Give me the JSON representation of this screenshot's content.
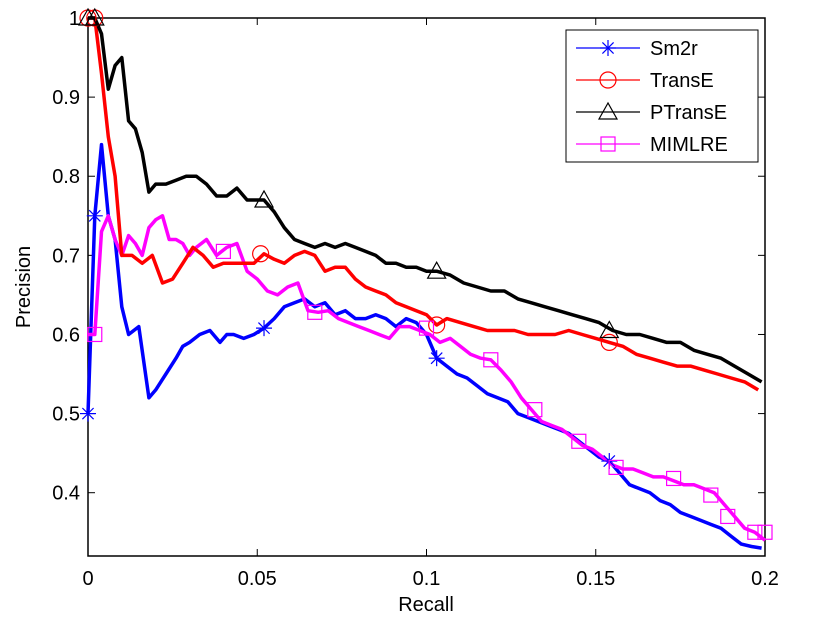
{
  "chart_data": {
    "type": "line",
    "title": "",
    "xlabel": "Recall",
    "ylabel": "Precision",
    "xlim": [
      0,
      0.2
    ],
    "ylim": [
      0.32,
      1.0
    ],
    "xticks": [
      0,
      0.05,
      0.1,
      0.15,
      0.2
    ],
    "xtick_labels": [
      "0",
      "0.05",
      "0.1",
      "0.15",
      "0.2"
    ],
    "yticks": [
      0.4,
      0.5,
      0.6,
      0.7,
      0.8,
      0.9,
      1.0
    ],
    "ytick_labels": [
      "0.4",
      "0.5",
      "0.6",
      "0.7",
      "0.8",
      "0.9",
      "1"
    ],
    "grid": false,
    "legend_position": "top-right",
    "series": [
      {
        "name": "Sm2r",
        "color": "#0000ff",
        "marker": "asterisk",
        "x": [
          0.0,
          0.002,
          0.004,
          0.006,
          0.008,
          0.01,
          0.012,
          0.015,
          0.018,
          0.02,
          0.023,
          0.026,
          0.028,
          0.03,
          0.033,
          0.036,
          0.039,
          0.041,
          0.043,
          0.046,
          0.049,
          0.052,
          0.055,
          0.058,
          0.061,
          0.064,
          0.067,
          0.07,
          0.073,
          0.076,
          0.079,
          0.082,
          0.085,
          0.088,
          0.091,
          0.094,
          0.097,
          0.1,
          0.103,
          0.106,
          0.109,
          0.112,
          0.115,
          0.118,
          0.121,
          0.124,
          0.127,
          0.13,
          0.133,
          0.136,
          0.139,
          0.142,
          0.145,
          0.148,
          0.151,
          0.154,
          0.157,
          0.16,
          0.163,
          0.166,
          0.169,
          0.172,
          0.175,
          0.178,
          0.181,
          0.184,
          0.187,
          0.19,
          0.193,
          0.196,
          0.199
        ],
        "y": [
          0.5,
          0.75,
          0.84,
          0.75,
          0.72,
          0.635,
          0.6,
          0.61,
          0.52,
          0.53,
          0.55,
          0.57,
          0.585,
          0.59,
          0.6,
          0.605,
          0.59,
          0.6,
          0.6,
          0.595,
          0.6,
          0.608,
          0.62,
          0.635,
          0.64,
          0.645,
          0.635,
          0.64,
          0.625,
          0.63,
          0.62,
          0.62,
          0.625,
          0.62,
          0.61,
          0.62,
          0.615,
          0.6,
          0.57,
          0.56,
          0.55,
          0.545,
          0.535,
          0.525,
          0.52,
          0.515,
          0.5,
          0.495,
          0.49,
          0.485,
          0.48,
          0.475,
          0.465,
          0.455,
          0.445,
          0.44,
          0.425,
          0.41,
          0.405,
          0.4,
          0.39,
          0.385,
          0.375,
          0.37,
          0.365,
          0.36,
          0.355,
          0.345,
          0.335,
          0.332,
          0.33
        ],
        "marker_x": [
          0.0,
          0.002,
          0.052,
          0.103,
          0.154
        ],
        "marker_y": [
          0.5,
          0.75,
          0.608,
          0.57,
          0.44
        ]
      },
      {
        "name": "TransE",
        "color": "#ff0000",
        "marker": "circle",
        "x": [
          0.0,
          0.002,
          0.004,
          0.006,
          0.008,
          0.01,
          0.013,
          0.016,
          0.019,
          0.022,
          0.025,
          0.028,
          0.031,
          0.034,
          0.037,
          0.04,
          0.043,
          0.046,
          0.049,
          0.052,
          0.055,
          0.058,
          0.061,
          0.064,
          0.067,
          0.07,
          0.073,
          0.076,
          0.079,
          0.082,
          0.085,
          0.088,
          0.091,
          0.094,
          0.097,
          0.1,
          0.103,
          0.106,
          0.11,
          0.114,
          0.118,
          0.122,
          0.126,
          0.13,
          0.134,
          0.138,
          0.142,
          0.146,
          0.15,
          0.154,
          0.158,
          0.162,
          0.166,
          0.17,
          0.174,
          0.178,
          0.182,
          0.186,
          0.19,
          0.194,
          0.198
        ],
        "y": [
          1.0,
          1.0,
          0.93,
          0.85,
          0.8,
          0.7,
          0.7,
          0.69,
          0.7,
          0.665,
          0.67,
          0.69,
          0.71,
          0.7,
          0.685,
          0.69,
          0.69,
          0.69,
          0.69,
          0.702,
          0.695,
          0.69,
          0.7,
          0.705,
          0.7,
          0.68,
          0.685,
          0.685,
          0.67,
          0.66,
          0.655,
          0.65,
          0.64,
          0.635,
          0.63,
          0.625,
          0.612,
          0.62,
          0.615,
          0.61,
          0.605,
          0.605,
          0.605,
          0.6,
          0.6,
          0.6,
          0.605,
          0.6,
          0.595,
          0.59,
          0.585,
          0.575,
          0.57,
          0.565,
          0.56,
          0.56,
          0.555,
          0.55,
          0.545,
          0.54,
          0.53
        ],
        "marker_x": [
          0.0,
          0.002,
          0.051,
          0.103,
          0.154
        ],
        "marker_y": [
          1.0,
          1.0,
          0.702,
          0.612,
          0.59
        ]
      },
      {
        "name": "PTransE",
        "color": "#000000",
        "marker": "triangle",
        "x": [
          0.0,
          0.002,
          0.004,
          0.006,
          0.008,
          0.01,
          0.012,
          0.014,
          0.016,
          0.018,
          0.02,
          0.023,
          0.026,
          0.029,
          0.032,
          0.035,
          0.038,
          0.041,
          0.044,
          0.047,
          0.05,
          0.052,
          0.055,
          0.058,
          0.061,
          0.064,
          0.067,
          0.07,
          0.073,
          0.076,
          0.079,
          0.082,
          0.085,
          0.088,
          0.091,
          0.094,
          0.097,
          0.1,
          0.103,
          0.107,
          0.111,
          0.115,
          0.119,
          0.123,
          0.127,
          0.131,
          0.135,
          0.139,
          0.143,
          0.147,
          0.151,
          0.155,
          0.159,
          0.163,
          0.167,
          0.171,
          0.175,
          0.179,
          0.183,
          0.187,
          0.191,
          0.195,
          0.199
        ],
        "y": [
          1.0,
          1.0,
          0.98,
          0.91,
          0.94,
          0.95,
          0.87,
          0.86,
          0.83,
          0.78,
          0.79,
          0.79,
          0.795,
          0.8,
          0.8,
          0.79,
          0.775,
          0.775,
          0.785,
          0.77,
          0.77,
          0.77,
          0.755,
          0.735,
          0.72,
          0.715,
          0.71,
          0.715,
          0.71,
          0.715,
          0.71,
          0.705,
          0.7,
          0.69,
          0.69,
          0.685,
          0.685,
          0.68,
          0.68,
          0.675,
          0.665,
          0.66,
          0.655,
          0.655,
          0.645,
          0.64,
          0.635,
          0.63,
          0.625,
          0.62,
          0.615,
          0.605,
          0.6,
          0.6,
          0.595,
          0.59,
          0.59,
          0.58,
          0.575,
          0.57,
          0.56,
          0.55,
          0.54
        ],
        "marker_x": [
          0.0,
          0.002,
          0.052,
          0.103,
          0.154
        ],
        "marker_y": [
          1.0,
          1.0,
          0.77,
          0.68,
          0.605
        ]
      },
      {
        "name": "MIMLRE",
        "color": "#ff00ff",
        "marker": "square",
        "x": [
          0.0,
          0.002,
          0.004,
          0.006,
          0.008,
          0.01,
          0.012,
          0.014,
          0.016,
          0.018,
          0.02,
          0.022,
          0.024,
          0.026,
          0.028,
          0.03,
          0.032,
          0.035,
          0.038,
          0.041,
          0.044,
          0.047,
          0.05,
          0.053,
          0.056,
          0.059,
          0.062,
          0.065,
          0.068,
          0.071,
          0.074,
          0.077,
          0.08,
          0.083,
          0.086,
          0.089,
          0.092,
          0.095,
          0.098,
          0.101,
          0.104,
          0.107,
          0.11,
          0.113,
          0.116,
          0.119,
          0.122,
          0.125,
          0.128,
          0.131,
          0.134,
          0.137,
          0.14,
          0.143,
          0.146,
          0.149,
          0.152,
          0.155,
          0.158,
          0.161,
          0.164,
          0.167,
          0.17,
          0.173,
          0.176,
          0.179,
          0.182,
          0.185,
          0.188,
          0.191,
          0.194,
          0.197,
          0.2
        ],
        "y": [
          0.6,
          0.6,
          0.73,
          0.75,
          0.72,
          0.7,
          0.725,
          0.715,
          0.7,
          0.735,
          0.745,
          0.75,
          0.72,
          0.72,
          0.715,
          0.7,
          0.71,
          0.72,
          0.7,
          0.71,
          0.715,
          0.68,
          0.67,
          0.655,
          0.65,
          0.66,
          0.665,
          0.63,
          0.628,
          0.63,
          0.62,
          0.615,
          0.61,
          0.605,
          0.6,
          0.595,
          0.61,
          0.61,
          0.605,
          0.6,
          0.59,
          0.595,
          0.585,
          0.575,
          0.57,
          0.568,
          0.555,
          0.54,
          0.52,
          0.505,
          0.49,
          0.485,
          0.48,
          0.47,
          0.46,
          0.455,
          0.445,
          0.435,
          0.43,
          0.43,
          0.425,
          0.42,
          0.42,
          0.415,
          0.41,
          0.41,
          0.405,
          0.4,
          0.385,
          0.37,
          0.355,
          0.35,
          0.34
        ],
        "marker_x": [
          0.002,
          0.04,
          0.067,
          0.1,
          0.119,
          0.132,
          0.145,
          0.156,
          0.173,
          0.184,
          0.189,
          0.197,
          0.2
        ],
        "marker_y": [
          0.6,
          0.705,
          0.628,
          0.608,
          0.568,
          0.505,
          0.465,
          0.432,
          0.418,
          0.397,
          0.37,
          0.35,
          0.35
        ]
      }
    ]
  }
}
